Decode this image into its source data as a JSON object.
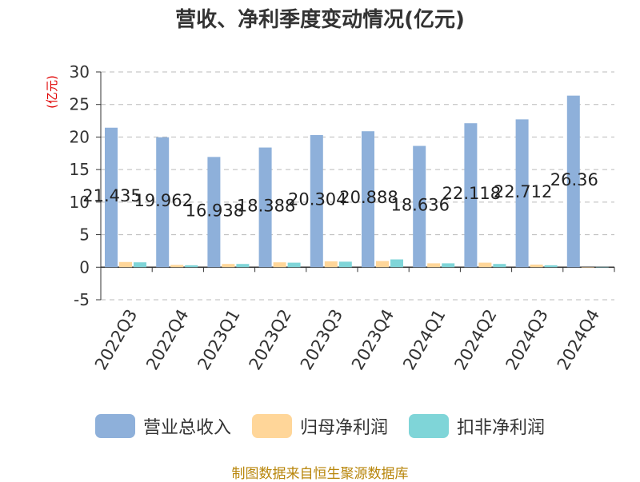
{
  "title": "营收、净利季度变动情况(亿元)",
  "source": "制图数据来自恒生聚源数据库",
  "colors": {
    "series": [
      "#8eb0da",
      "#ffd699",
      "#7fd5d8"
    ],
    "y_unit": "#e00000",
    "axis": "#333333",
    "grid": "#bbbbbb"
  },
  "chart_data": {
    "type": "bar",
    "title": "营收、净利季度变动情况(亿元)",
    "ylabel": "(亿元)",
    "ylim": [
      -5,
      30
    ],
    "yticks": [
      -5,
      0,
      5,
      10,
      15,
      20,
      25,
      30
    ],
    "grid": true,
    "legend": "bottom",
    "categories": [
      "2022Q3",
      "2022Q4",
      "2023Q1",
      "2023Q2",
      "2023Q3",
      "2023Q4",
      "2024Q1",
      "2024Q2",
      "2024Q3",
      "2024Q4"
    ],
    "series": [
      {
        "name": "营业总收入",
        "values": [
          21.435,
          19.962,
          16.938,
          18.388,
          20.304,
          20.888,
          18.636,
          22.118,
          22.712,
          26.36
        ]
      },
      {
        "name": "归母净利润",
        "values": [
          0.8,
          0.35,
          0.5,
          0.75,
          0.9,
          0.95,
          0.6,
          0.7,
          0.4,
          0.0
        ]
      },
      {
        "name": "扣非净利润",
        "values": [
          0.75,
          0.3,
          0.5,
          0.7,
          0.85,
          1.2,
          0.6,
          0.5,
          0.3,
          0.05
        ]
      }
    ],
    "data_labels": [
      "21.435",
      "19.962",
      "16.938",
      "18.388",
      "20.304",
      "20.888",
      "18.636",
      "22.118",
      "22.712",
      "26.36"
    ]
  }
}
